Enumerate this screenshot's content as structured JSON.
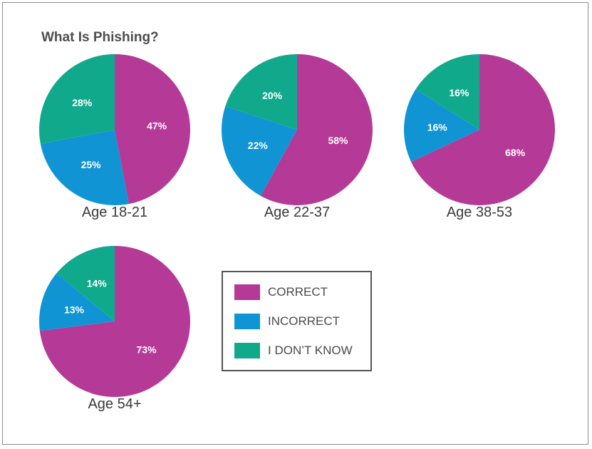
{
  "title": "What Is Phishing?",
  "colors": {
    "correct": "#b53996",
    "incorrect": "#1094d4",
    "dont_know": "#11a98c"
  },
  "legend": [
    {
      "label": "CORRECT",
      "color_key": "correct"
    },
    {
      "label": "INCORRECT",
      "color_key": "incorrect"
    },
    {
      "label": "I DON’T KNOW",
      "color_key": "dont_know"
    }
  ],
  "chart_data": [
    {
      "type": "pie",
      "title": "What Is Phishing?",
      "label": "Age 18-21",
      "slices": [
        {
          "name": "CORRECT",
          "value": 47,
          "label": "47%"
        },
        {
          "name": "INCORRECT",
          "value": 25,
          "label": "25%"
        },
        {
          "name": "I DON’T KNOW",
          "value": 28,
          "label": "28%"
        }
      ]
    },
    {
      "type": "pie",
      "label": "Age 22-37",
      "slices": [
        {
          "name": "CORRECT",
          "value": 58,
          "label": "58%"
        },
        {
          "name": "INCORRECT",
          "value": 22,
          "label": "22%"
        },
        {
          "name": "I DON’T KNOW",
          "value": 20,
          "label": "20%"
        }
      ]
    },
    {
      "type": "pie",
      "label": "Age 38-53",
      "slices": [
        {
          "name": "CORRECT",
          "value": 68,
          "label": "68%"
        },
        {
          "name": "INCORRECT",
          "value": 16,
          "label": "16%"
        },
        {
          "name": "I DON’T KNOW",
          "value": 16,
          "label": "16%"
        }
      ]
    },
    {
      "type": "pie",
      "label": "Age 54+",
      "slices": [
        {
          "name": "CORRECT",
          "value": 73,
          "label": "73%"
        },
        {
          "name": "INCORRECT",
          "value": 13,
          "label": "13%"
        },
        {
          "name": "I DON’T KNOW",
          "value": 14,
          "label": "14%"
        }
      ]
    }
  ]
}
